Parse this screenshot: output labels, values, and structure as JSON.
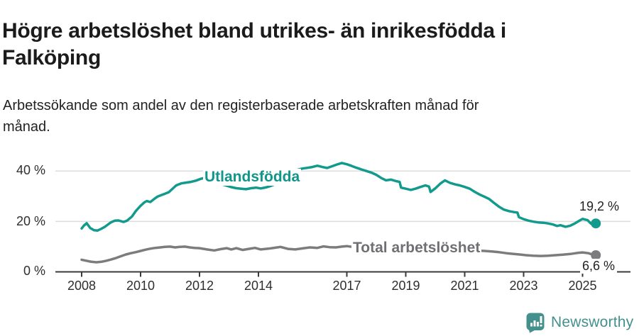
{
  "header": {
    "title": "Högre arbetslöshet bland utrikes- än inrikesfödda i Falköping",
    "subtitle": "Arbetssökande som andel av den registerbaserade arbetskraften månad för månad."
  },
  "footer": {
    "brand": "Newsworthy"
  },
  "chart_data": {
    "type": "line",
    "title": "Högre arbetslöshet bland utrikes- än inrikesfödda i Falköping",
    "subtitle": "Arbetssökande som andel av den registerbaserade arbetskraften månad för månad.",
    "x_unit": "year (decimal, monthly data)",
    "y_unit": "percent",
    "ylim": [
      0,
      45
    ],
    "xlim": [
      2007.1,
      2027.5
    ],
    "grid": "horizontal",
    "legend_position": "inline-labels",
    "grid_color": "#dcdcdc",
    "axis_color": "#3a3a3a",
    "y_ticks": [
      {
        "value": 0,
        "label": "0 %"
      },
      {
        "value": 20,
        "label": "20 %"
      },
      {
        "value": 40,
        "label": "40 %"
      }
    ],
    "x_ticks": [
      {
        "value": 2008,
        "label": "2008"
      },
      {
        "value": 2010,
        "label": "2010"
      },
      {
        "value": 2012,
        "label": "2012"
      },
      {
        "value": 2014,
        "label": "2014"
      },
      {
        "value": 2017,
        "label": "2017"
      },
      {
        "value": 2019,
        "label": "2019"
      },
      {
        "value": 2021,
        "label": "2021"
      },
      {
        "value": 2023,
        "label": "2023"
      },
      {
        "value": 2025,
        "label": "2025"
      }
    ],
    "series": [
      {
        "id": "utlandsfodda",
        "name": "Utlandsfödda",
        "color": "#129a8c",
        "end_label": "19,2 %",
        "end_value": 19.2,
        "points": [
          [
            2008.0,
            17.2
          ],
          [
            2008.08,
            18.4
          ],
          [
            2008.17,
            19.3
          ],
          [
            2008.29,
            17.4
          ],
          [
            2008.42,
            16.5
          ],
          [
            2008.54,
            16.4
          ],
          [
            2008.67,
            17.1
          ],
          [
            2008.79,
            17.9
          ],
          [
            2008.92,
            19.0
          ],
          [
            2009.0,
            19.7
          ],
          [
            2009.13,
            20.3
          ],
          [
            2009.25,
            20.4
          ],
          [
            2009.42,
            19.8
          ],
          [
            2009.54,
            20.3
          ],
          [
            2009.71,
            22.0
          ],
          [
            2009.83,
            24.0
          ],
          [
            2009.92,
            25.2
          ],
          [
            2010.0,
            26.2
          ],
          [
            2010.13,
            27.6
          ],
          [
            2010.21,
            28.1
          ],
          [
            2010.33,
            27.7
          ],
          [
            2010.46,
            28.9
          ],
          [
            2010.58,
            29.9
          ],
          [
            2010.71,
            30.5
          ],
          [
            2010.83,
            31.0
          ],
          [
            2010.96,
            31.6
          ],
          [
            2011.08,
            32.9
          ],
          [
            2011.21,
            34.3
          ],
          [
            2011.38,
            35.1
          ],
          [
            2011.54,
            35.4
          ],
          [
            2011.71,
            35.7
          ],
          [
            2011.88,
            36.2
          ],
          [
            2012.04,
            36.9
          ],
          [
            2012.21,
            37.4
          ],
          [
            2012.33,
            37.7
          ],
          [
            2012.46,
            36.8
          ],
          [
            2012.58,
            35.6
          ],
          [
            2012.75,
            34.8
          ],
          [
            2012.92,
            34.2
          ],
          [
            2013.08,
            33.6
          ],
          [
            2013.25,
            33.2
          ],
          [
            2013.42,
            33.0
          ],
          [
            2013.58,
            32.8
          ],
          [
            2013.75,
            33.2
          ],
          [
            2013.92,
            33.4
          ],
          [
            2014.08,
            33.1
          ],
          [
            2014.25,
            33.5
          ],
          [
            2014.42,
            34.1
          ],
          [
            2014.63,
            35.1
          ],
          [
            2014.83,
            36.7
          ],
          [
            2015.0,
            38.2
          ],
          [
            2015.17,
            39.5
          ],
          [
            2015.33,
            40.5
          ],
          [
            2015.5,
            41.0
          ],
          [
            2015.67,
            41.3
          ],
          [
            2015.83,
            41.6
          ],
          [
            2016.0,
            42.1
          ],
          [
            2016.17,
            41.6
          ],
          [
            2016.33,
            41.2
          ],
          [
            2016.5,
            41.9
          ],
          [
            2016.67,
            42.6
          ],
          [
            2016.83,
            43.2
          ],
          [
            2017.0,
            42.7
          ],
          [
            2017.17,
            42.0
          ],
          [
            2017.33,
            41.3
          ],
          [
            2017.5,
            40.6
          ],
          [
            2017.67,
            40.0
          ],
          [
            2017.83,
            39.4
          ],
          [
            2018.0,
            38.5
          ],
          [
            2018.17,
            37.2
          ],
          [
            2018.33,
            36.3
          ],
          [
            2018.5,
            36.6
          ],
          [
            2018.67,
            36.0
          ],
          [
            2018.79,
            35.7
          ],
          [
            2018.84,
            33.4
          ],
          [
            2019.0,
            33.0
          ],
          [
            2019.17,
            32.5
          ],
          [
            2019.33,
            33.0
          ],
          [
            2019.5,
            33.7
          ],
          [
            2019.67,
            34.3
          ],
          [
            2019.79,
            33.8
          ],
          [
            2019.84,
            31.7
          ],
          [
            2020.0,
            33.1
          ],
          [
            2020.17,
            35.0
          ],
          [
            2020.33,
            36.3
          ],
          [
            2020.5,
            35.3
          ],
          [
            2020.67,
            34.7
          ],
          [
            2020.83,
            34.3
          ],
          [
            2021.0,
            33.7
          ],
          [
            2021.17,
            33.0
          ],
          [
            2021.33,
            31.8
          ],
          [
            2021.5,
            30.7
          ],
          [
            2021.67,
            29.8
          ],
          [
            2021.83,
            28.9
          ],
          [
            2022.0,
            27.3
          ],
          [
            2022.17,
            25.8
          ],
          [
            2022.33,
            24.7
          ],
          [
            2022.5,
            24.1
          ],
          [
            2022.67,
            23.7
          ],
          [
            2022.79,
            23.5
          ],
          [
            2022.84,
            21.7
          ],
          [
            2023.0,
            20.9
          ],
          [
            2023.17,
            20.3
          ],
          [
            2023.33,
            19.9
          ],
          [
            2023.5,
            19.6
          ],
          [
            2023.67,
            19.5
          ],
          [
            2023.83,
            19.2
          ],
          [
            2024.0,
            18.8
          ],
          [
            2024.13,
            18.2
          ],
          [
            2024.25,
            18.5
          ],
          [
            2024.42,
            17.9
          ],
          [
            2024.58,
            18.3
          ],
          [
            2024.75,
            19.3
          ],
          [
            2024.92,
            20.5
          ],
          [
            2025.0,
            21.0
          ],
          [
            2025.17,
            20.5
          ],
          [
            2025.29,
            19.1
          ],
          [
            2025.45,
            19.2
          ]
        ]
      },
      {
        "id": "total",
        "name": "Total arbetslöshet",
        "color": "#7c7c7e",
        "end_label": "6,6 %",
        "end_value": 6.6,
        "points": [
          [
            2008.0,
            4.8
          ],
          [
            2008.17,
            4.4
          ],
          [
            2008.33,
            4.0
          ],
          [
            2008.5,
            3.8
          ],
          [
            2008.67,
            4.0
          ],
          [
            2008.83,
            4.4
          ],
          [
            2009.0,
            4.9
          ],
          [
            2009.17,
            5.5
          ],
          [
            2009.33,
            6.2
          ],
          [
            2009.5,
            6.9
          ],
          [
            2009.67,
            7.4
          ],
          [
            2009.83,
            7.8
          ],
          [
            2010.0,
            8.3
          ],
          [
            2010.17,
            8.8
          ],
          [
            2010.33,
            9.2
          ],
          [
            2010.5,
            9.5
          ],
          [
            2010.67,
            9.7
          ],
          [
            2010.83,
            9.9
          ],
          [
            2011.0,
            10.0
          ],
          [
            2011.17,
            9.7
          ],
          [
            2011.33,
            9.9
          ],
          [
            2011.5,
            10.0
          ],
          [
            2011.67,
            9.7
          ],
          [
            2011.83,
            9.5
          ],
          [
            2012.0,
            9.4
          ],
          [
            2012.25,
            8.9
          ],
          [
            2012.5,
            8.5
          ],
          [
            2012.71,
            9.0
          ],
          [
            2012.92,
            9.4
          ],
          [
            2013.08,
            8.9
          ],
          [
            2013.25,
            9.4
          ],
          [
            2013.46,
            8.7
          ],
          [
            2013.67,
            9.1
          ],
          [
            2013.88,
            9.5
          ],
          [
            2014.08,
            8.9
          ],
          [
            2014.33,
            9.2
          ],
          [
            2014.58,
            9.6
          ],
          [
            2014.75,
            9.9
          ],
          [
            2015.0,
            9.1
          ],
          [
            2015.25,
            8.9
          ],
          [
            2015.5,
            9.3
          ],
          [
            2015.75,
            9.7
          ],
          [
            2016.0,
            9.5
          ],
          [
            2016.21,
            10.1
          ],
          [
            2016.42,
            9.8
          ],
          [
            2016.63,
            9.7
          ],
          [
            2016.83,
            10.0
          ],
          [
            2017.0,
            10.2
          ],
          [
            2017.25,
            9.8
          ],
          [
            2017.5,
            9.4
          ],
          [
            2017.75,
            9.0
          ],
          [
            2018.0,
            8.7
          ],
          [
            2018.33,
            8.4
          ],
          [
            2018.67,
            8.1
          ],
          [
            2019.0,
            7.9
          ],
          [
            2019.33,
            7.7
          ],
          [
            2019.67,
            7.8
          ],
          [
            2020.0,
            8.4
          ],
          [
            2020.33,
            9.2
          ],
          [
            2020.67,
            9.0
          ],
          [
            2021.0,
            8.7
          ],
          [
            2021.33,
            8.5
          ],
          [
            2021.67,
            8.3
          ],
          [
            2021.92,
            8.1
          ],
          [
            2022.17,
            7.8
          ],
          [
            2022.42,
            7.4
          ],
          [
            2022.67,
            7.1
          ],
          [
            2022.92,
            6.8
          ],
          [
            2023.08,
            6.6
          ],
          [
            2023.33,
            6.4
          ],
          [
            2023.58,
            6.3
          ],
          [
            2023.83,
            6.4
          ],
          [
            2024.08,
            6.6
          ],
          [
            2024.33,
            6.8
          ],
          [
            2024.58,
            7.1
          ],
          [
            2024.83,
            7.5
          ],
          [
            2025.0,
            7.7
          ],
          [
            2025.2,
            7.4
          ],
          [
            2025.3,
            7.0
          ],
          [
            2025.45,
            6.6
          ]
        ]
      }
    ]
  }
}
